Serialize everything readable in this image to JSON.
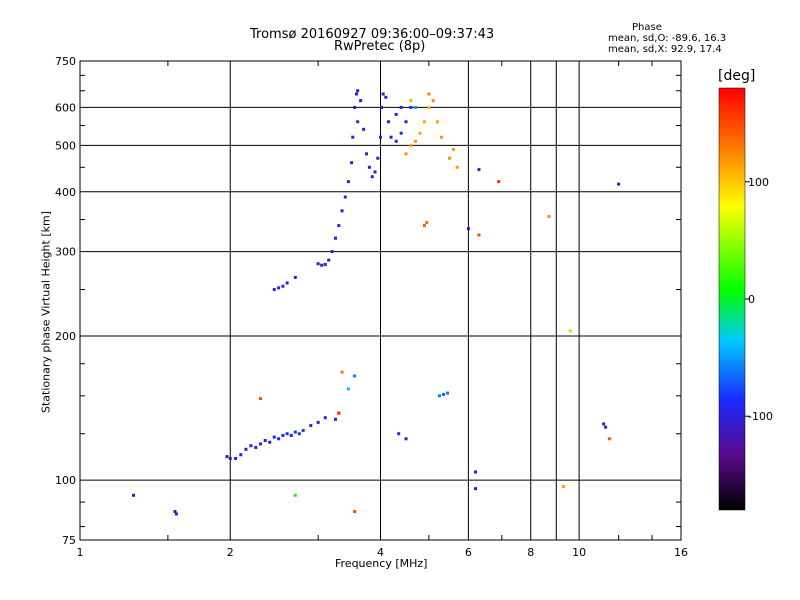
{
  "chart_data": {
    "type": "scatter",
    "title": "Tromsø 20160927 09:36:00–09:37:43",
    "subtitle": "RwPretec (8p)",
    "xlabel": "Frequency [MHz]",
    "ylabel": "Stationary phase Virtual Height [km]",
    "xscale": "log",
    "yscale": "log",
    "xlim": [
      1,
      16
    ],
    "ylim": [
      75,
      750
    ],
    "x_ticks": [
      1,
      2,
      4,
      6,
      8,
      9,
      10,
      16
    ],
    "x_tick_labels": [
      "1",
      "2",
      "4",
      "6",
      "8",
      "",
      "10",
      "16"
    ],
    "y_ticks": [
      75,
      100,
      200,
      300,
      400,
      500,
      600,
      750
    ],
    "y_tick_labels": [
      "75",
      "100",
      "200",
      "300",
      "400",
      "500",
      "600",
      "750"
    ],
    "grid": true,
    "stats": {
      "heading": "Phase",
      "line_o": "mean, sd,O: -89.6, 16.3",
      "line_x": "mean, sd,X:  92.9, 17.4"
    },
    "colorbar": {
      "label": "[deg]",
      "min": -180,
      "max": 180,
      "ticks": [
        100,
        0,
        -100
      ],
      "tick_labels": [
        "100",
        "0",
        "-100"
      ]
    },
    "series": [
      {
        "values": [
          [
            1.28,
            93,
            -115
          ],
          [
            1.55,
            86,
            -125
          ],
          [
            1.56,
            85,
            -115
          ],
          [
            1.97,
            112,
            -115
          ],
          [
            2.0,
            111,
            -110
          ],
          [
            2.05,
            111,
            -112
          ],
          [
            2.1,
            113,
            -108
          ],
          [
            2.15,
            116,
            -105
          ],
          [
            2.2,
            118,
            -100
          ],
          [
            2.25,
            117,
            -95
          ],
          [
            2.3,
            119,
            -100
          ],
          [
            2.35,
            121,
            -90
          ],
          [
            2.4,
            120,
            -95
          ],
          [
            2.45,
            123,
            -92
          ],
          [
            2.5,
            122,
            -88
          ],
          [
            2.55,
            124,
            -90
          ],
          [
            2.6,
            125,
            -85
          ],
          [
            2.65,
            124,
            -88
          ],
          [
            2.7,
            126,
            -82
          ],
          [
            2.75,
            125,
            -85
          ],
          [
            2.8,
            127,
            -80
          ],
          [
            2.9,
            130,
            -90
          ],
          [
            3.0,
            132,
            -95
          ],
          [
            3.1,
            135,
            -92
          ],
          [
            3.3,
            138,
            -110
          ],
          [
            3.25,
            134,
            -100
          ],
          [
            2.45,
            250,
            -100
          ],
          [
            2.5,
            252,
            -98
          ],
          [
            2.55,
            254,
            -95
          ],
          [
            2.6,
            258,
            -100
          ],
          [
            2.7,
            265,
            -95
          ],
          [
            3.0,
            283,
            -115
          ],
          [
            3.05,
            281,
            -115
          ],
          [
            3.1,
            282,
            -112
          ],
          [
            3.15,
            288,
            -110
          ],
          [
            3.2,
            300,
            -108
          ],
          [
            3.25,
            320,
            -105
          ],
          [
            3.3,
            340,
            -100
          ],
          [
            3.35,
            365,
            -100
          ],
          [
            3.4,
            390,
            -98
          ],
          [
            3.45,
            420,
            -95
          ],
          [
            3.5,
            460,
            -98
          ],
          [
            3.52,
            520,
            -100
          ],
          [
            3.55,
            600,
            -105
          ],
          [
            3.58,
            640,
            -110
          ],
          [
            3.6,
            650,
            -100
          ],
          [
            3.65,
            620,
            -95
          ],
          [
            3.7,
            540,
            -100
          ],
          [
            3.75,
            480,
            -105
          ],
          [
            3.8,
            450,
            -110
          ],
          [
            3.85,
            430,
            -105
          ],
          [
            3.9,
            440,
            -100
          ],
          [
            3.95,
            470,
            -105
          ],
          [
            4.0,
            520,
            -100
          ],
          [
            4.02,
            600,
            -105
          ],
          [
            4.05,
            640,
            -110
          ],
          [
            4.1,
            630,
            -100
          ],
          [
            4.15,
            560,
            -95
          ],
          [
            4.2,
            520,
            -100
          ],
          [
            4.3,
            510,
            -95
          ],
          [
            4.4,
            530,
            -90
          ],
          [
            4.5,
            560,
            -85
          ],
          [
            4.6,
            600,
            -90
          ],
          [
            4.4,
            600,
            -100
          ],
          [
            4.3,
            580,
            -95
          ],
          [
            4.5,
            480,
            120
          ],
          [
            4.6,
            500,
            115
          ],
          [
            4.7,
            510,
            118
          ],
          [
            4.8,
            530,
            112
          ],
          [
            4.9,
            560,
            110
          ],
          [
            5.0,
            600,
            105
          ],
          [
            5.1,
            620,
            120
          ],
          [
            5.2,
            560,
            115
          ],
          [
            5.3,
            520,
            118
          ],
          [
            5.5,
            470,
            120
          ],
          [
            5.7,
            450,
            115
          ],
          [
            5.6,
            490,
            118
          ],
          [
            4.6,
            620,
            110
          ],
          [
            5.0,
            640,
            125
          ],
          [
            3.6,
            560,
            -90
          ],
          [
            4.7,
            600,
            -50
          ],
          [
            4.9,
            340,
            140
          ],
          [
            4.95,
            345,
            135
          ],
          [
            6.0,
            335,
            -120
          ],
          [
            6.3,
            325,
            150
          ],
          [
            6.3,
            445,
            -110
          ],
          [
            6.9,
            420,
            160
          ],
          [
            8.7,
            355,
            120
          ],
          [
            9.6,
            205,
            100
          ],
          [
            12.0,
            415,
            -120
          ],
          [
            6.2,
            104,
            -100
          ],
          [
            6.2,
            96,
            -120
          ],
          [
            9.3,
            97,
            110
          ],
          [
            11.2,
            131,
            -115
          ],
          [
            11.3,
            129,
            -110
          ],
          [
            11.5,
            122,
            145
          ],
          [
            4.35,
            125,
            -100
          ],
          [
            4.5,
            122,
            -110
          ],
          [
            5.25,
            150,
            -60
          ],
          [
            5.35,
            151,
            -65
          ],
          [
            5.45,
            152,
            -60
          ],
          [
            3.45,
            155,
            -40
          ],
          [
            3.35,
            168,
            130
          ],
          [
            3.55,
            165,
            -60
          ],
          [
            2.3,
            148,
            150
          ],
          [
            2.7,
            93,
            10
          ],
          [
            3.3,
            138,
            160
          ],
          [
            3.55,
            86,
            150
          ]
        ]
      }
    ]
  }
}
